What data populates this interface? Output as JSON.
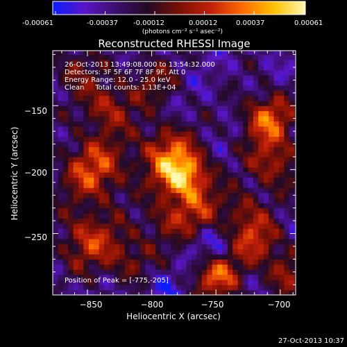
{
  "colorbar": {
    "tick_labels": [
      "-0.00061",
      "-0.00037",
      "-0.00012",
      "0.00012",
      "0.00037",
      "0.00061"
    ],
    "range": [
      -0.00061,
      0.00061
    ],
    "unit_label": "(photons cm⁻² s⁻¹ asec⁻²)",
    "colors": [
      "#0a1cff",
      "#5a16c8",
      "#3d0f6e",
      "#230a24",
      "#7a1005",
      "#c0200a",
      "#ff6a00",
      "#ffc200",
      "#fff7b0"
    ]
  },
  "chart_data": {
    "type": "heatmap",
    "title": "Reconstructed RHESSI Image",
    "xlabel": "Heliocentric X (arcsec)",
    "ylabel": "Heliocentric Y (arcsec)",
    "xlim": [
      -877,
      -688
    ],
    "ylim": [
      -298,
      -107
    ],
    "xticks": [
      -850,
      -800,
      -750,
      -700
    ],
    "yticks": [
      -150,
      -200,
      -250
    ],
    "xtick_labels": [
      "−850",
      "−800",
      "−750",
      "−700"
    ],
    "ytick_labels": [
      "−150",
      "−200",
      "−250"
    ],
    "peak_position": [
      -775,
      -205
    ],
    "info": [
      "26-Oct-2013 13:49:08.000 to 13:54:32.000",
      "Detectors: 3F 5F 6F 7F 8F 9F, Att 0",
      "Energy Range: 12.0 - 25.0 keV",
      "Clean     Total counts: 1.13E+04"
    ],
    "peak_label": "Position of Peak = [-775,-205]"
  },
  "footer": {
    "timestamp": "27-Oct-2013 10:37"
  }
}
